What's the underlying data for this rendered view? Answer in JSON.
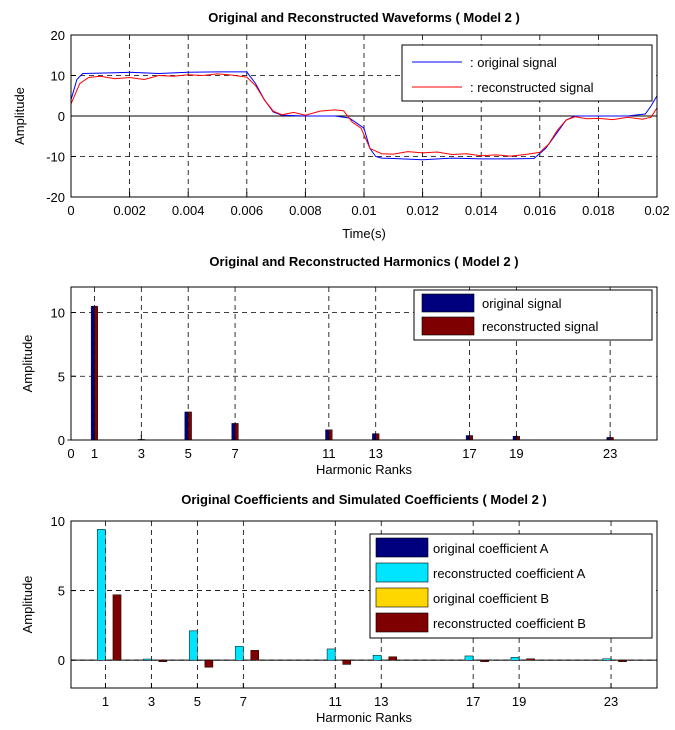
{
  "chart_data": [
    {
      "type": "line",
      "title": "Original and Reconstructed Waveforms ( Model 2 )",
      "xlabel": "Time(s)",
      "ylabel": "Amplitude",
      "xlim": [
        0,
        0.02
      ],
      "ylim": [
        -20,
        20
      ],
      "xticks": [
        "0",
        "0.002",
        "0.004",
        "0.006",
        "0.008",
        "0.01",
        "0.012",
        "0.014",
        "0.016",
        "0.018",
        "0.02"
      ],
      "yticks": [
        "-20",
        "-10",
        "0",
        "10",
        "20"
      ],
      "grid": true,
      "legend_position": "top-right",
      "legend": [
        ": original signal",
        ": reconstructed signal"
      ],
      "series": [
        {
          "name": ": original signal",
          "color": "#0000ff",
          "x": [
            0,
            0.0002,
            0.0004,
            0.001,
            0.002,
            0.003,
            0.004,
            0.005,
            0.006,
            0.0063,
            0.0066,
            0.0069,
            0.0072,
            0.008,
            0.009,
            0.0095,
            0.01,
            0.0102,
            0.0104,
            0.0106,
            0.011,
            0.012,
            0.013,
            0.014,
            0.015,
            0.0158,
            0.0162,
            0.0166,
            0.0169,
            0.0172,
            0.018,
            0.019,
            0.0196,
            0.0198,
            0.02
          ],
          "y": [
            4,
            9,
            10.5,
            10.6,
            10.8,
            10.5,
            10.8,
            10.9,
            10.9,
            8,
            4,
            1,
            0.2,
            0,
            0,
            -0.5,
            -3,
            -8,
            -10,
            -10.4,
            -10.5,
            -10.8,
            -10.4,
            -10.6,
            -10.6,
            -10.5,
            -8,
            -4,
            -1,
            0,
            0,
            0,
            0.5,
            2.5,
            5
          ]
        },
        {
          "name": ": reconstructed signal",
          "color": "#ff0000",
          "x": [
            0,
            0.0003,
            0.0006,
            0.001,
            0.0015,
            0.002,
            0.0025,
            0.003,
            0.0035,
            0.004,
            0.0045,
            0.005,
            0.0055,
            0.006,
            0.0063,
            0.0066,
            0.0069,
            0.0072,
            0.0076,
            0.008,
            0.0085,
            0.009,
            0.0093,
            0.0096,
            0.0099,
            0.0102,
            0.0106,
            0.011,
            0.0115,
            0.012,
            0.0125,
            0.013,
            0.0135,
            0.014,
            0.0145,
            0.015,
            0.0155,
            0.016,
            0.0163,
            0.0166,
            0.0169,
            0.0172,
            0.0176,
            0.018,
            0.0185,
            0.019,
            0.0195,
            0.0198,
            0.02
          ],
          "y": [
            3,
            8,
            9.5,
            9.8,
            9.2,
            9.5,
            9,
            10,
            9.8,
            10.2,
            10,
            10.4,
            10.1,
            9.6,
            7.5,
            4,
            1.2,
            0.3,
            0.9,
            0.2,
            1.2,
            1.5,
            1.3,
            -1.5,
            -3,
            -8,
            -9.3,
            -9.4,
            -8.8,
            -9.1,
            -8.9,
            -9.5,
            -9.3,
            -9.8,
            -9.6,
            -9.9,
            -9.5,
            -9,
            -7,
            -3.5,
            -1,
            -0.2,
            -0.7,
            -0.6,
            -0.9,
            -0.3,
            -0.8,
            -0.3,
            2
          ]
        }
      ]
    },
    {
      "type": "bar",
      "title": "Original and Reconstructed Harmonics ( Model 2 )",
      "xlabel": "Harmonic Ranks",
      "ylabel": "Amplitude",
      "xlim": [
        0,
        25
      ],
      "ylim": [
        0,
        12
      ],
      "xticks": [
        "0",
        "1",
        "3",
        "5",
        "7",
        "11",
        "13",
        "17",
        "19",
        "23"
      ],
      "yticks": [
        "0",
        "5",
        "10"
      ],
      "grid": true,
      "legend_position": "top-right",
      "legend": [
        "original signal",
        "reconstructed signal"
      ],
      "categories": [
        0,
        1,
        3,
        5,
        7,
        11,
        13,
        17,
        19,
        23
      ],
      "series": [
        {
          "name": "original signal",
          "color": "#00007f",
          "values": [
            0.02,
            10.5,
            0.05,
            2.2,
            1.3,
            0.8,
            0.5,
            0.35,
            0.3,
            0.2
          ]
        },
        {
          "name": "reconstructed signal",
          "color": "#7f0000",
          "values": [
            0.02,
            10.5,
            0.05,
            2.2,
            1.3,
            0.8,
            0.5,
            0.35,
            0.3,
            0.2
          ]
        }
      ]
    },
    {
      "type": "bar",
      "title": "Original Coefficients and Simulated Coefficients  ( Model 2 )",
      "xlabel": "Harmonic Ranks",
      "ylabel": "Amplitude",
      "xlim": [
        -0.5,
        25
      ],
      "ylim": [
        -2,
        10
      ],
      "xticks": [
        "1",
        "3",
        "5",
        "7",
        "11",
        "13",
        "17",
        "19",
        "23"
      ],
      "yticks": [
        "0",
        "5",
        "10"
      ],
      "grid": true,
      "legend_position": "top-right",
      "legend": [
        "original coefficient A",
        "reconstructed coefficient A",
        "original coefficient B",
        "reconstructed coefficient B"
      ],
      "categories": [
        1,
        3,
        5,
        7,
        11,
        13,
        17,
        19,
        23
      ],
      "series": [
        {
          "name": "original coefficient A",
          "color": "#00007f",
          "values": [
            9.4,
            0.08,
            2.1,
            1.0,
            0.8,
            0.35,
            0.3,
            0.2,
            0.1
          ]
        },
        {
          "name": "reconstructed coefficient A",
          "color": "#00e5ff",
          "values": [
            9.4,
            0.08,
            2.1,
            1.0,
            0.8,
            0.35,
            0.3,
            0.2,
            0.1
          ]
        },
        {
          "name": "original coefficient B",
          "color": "#ffd700",
          "values": [
            4.7,
            -0.1,
            -0.5,
            0.7,
            -0.3,
            0.25,
            -0.1,
            0.1,
            -0.1
          ]
        },
        {
          "name": "reconstructed coefficient B",
          "color": "#7f0000",
          "values": [
            4.7,
            -0.1,
            -0.5,
            0.7,
            -0.3,
            0.25,
            -0.1,
            0.1,
            -0.1
          ]
        }
      ]
    }
  ]
}
